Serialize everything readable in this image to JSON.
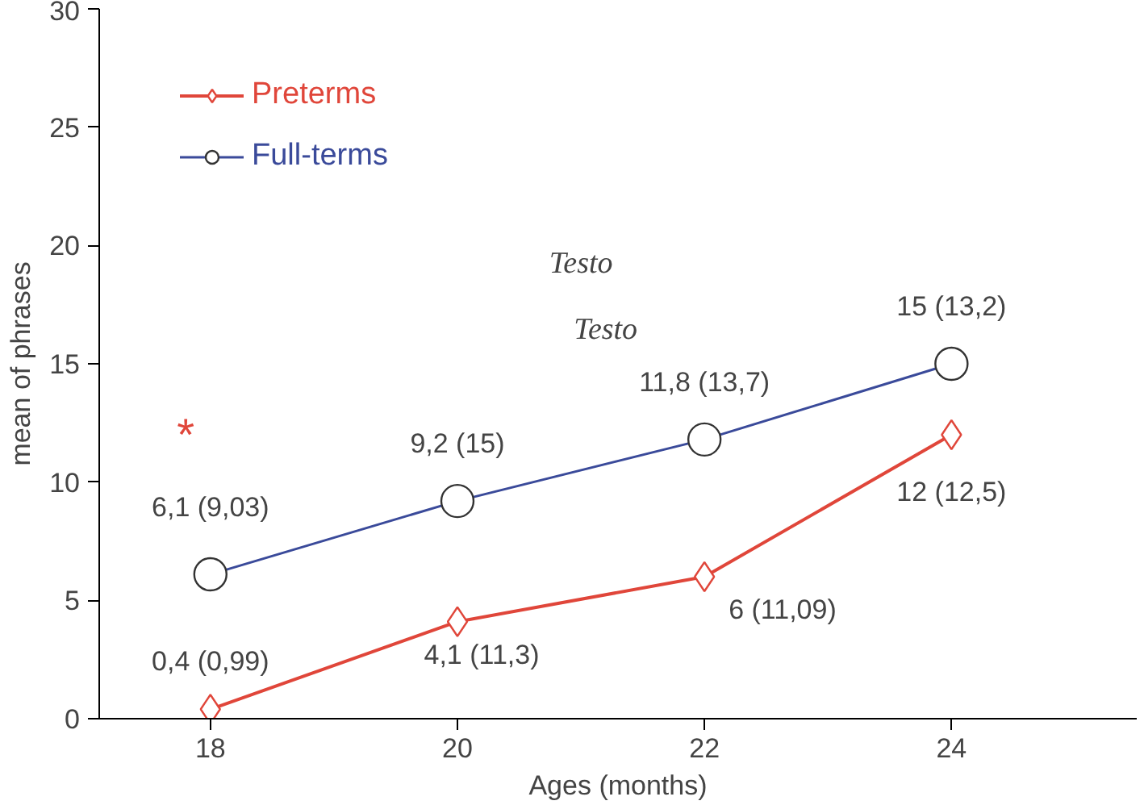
{
  "chart_data": {
    "type": "line",
    "xlabel": "Ages (months)",
    "ylabel": "mean of phrases",
    "categories": [
      "18",
      "20",
      "22",
      "24"
    ],
    "ylim": [
      0,
      30
    ],
    "yticks": [
      0,
      5,
      10,
      15,
      20,
      25,
      30
    ],
    "grid": false,
    "legend": "top left",
    "line_style": "solid",
    "series": [
      {
        "name": "Preterms",
        "color": "#e0463a",
        "marker": "diamond",
        "values": [
          0.4,
          4.1,
          6,
          12
        ],
        "value_labels": [
          "0,4 (0,99)",
          "4,1 (11,3)",
          "6 (11,09)",
          "12 (12,5)"
        ]
      },
      {
        "name": "Full-terms",
        "color": "#3a4a9a",
        "marker": "circle",
        "values": [
          6.1,
          9.2,
          11.8,
          15
        ],
        "value_labels": [
          "6,1 (9,03)",
          "9,2 (15)",
          "11,8 (13,7)",
          "15 (13,2)"
        ]
      }
    ],
    "annotations": [
      "*",
      "Testo",
      "Testo"
    ]
  }
}
